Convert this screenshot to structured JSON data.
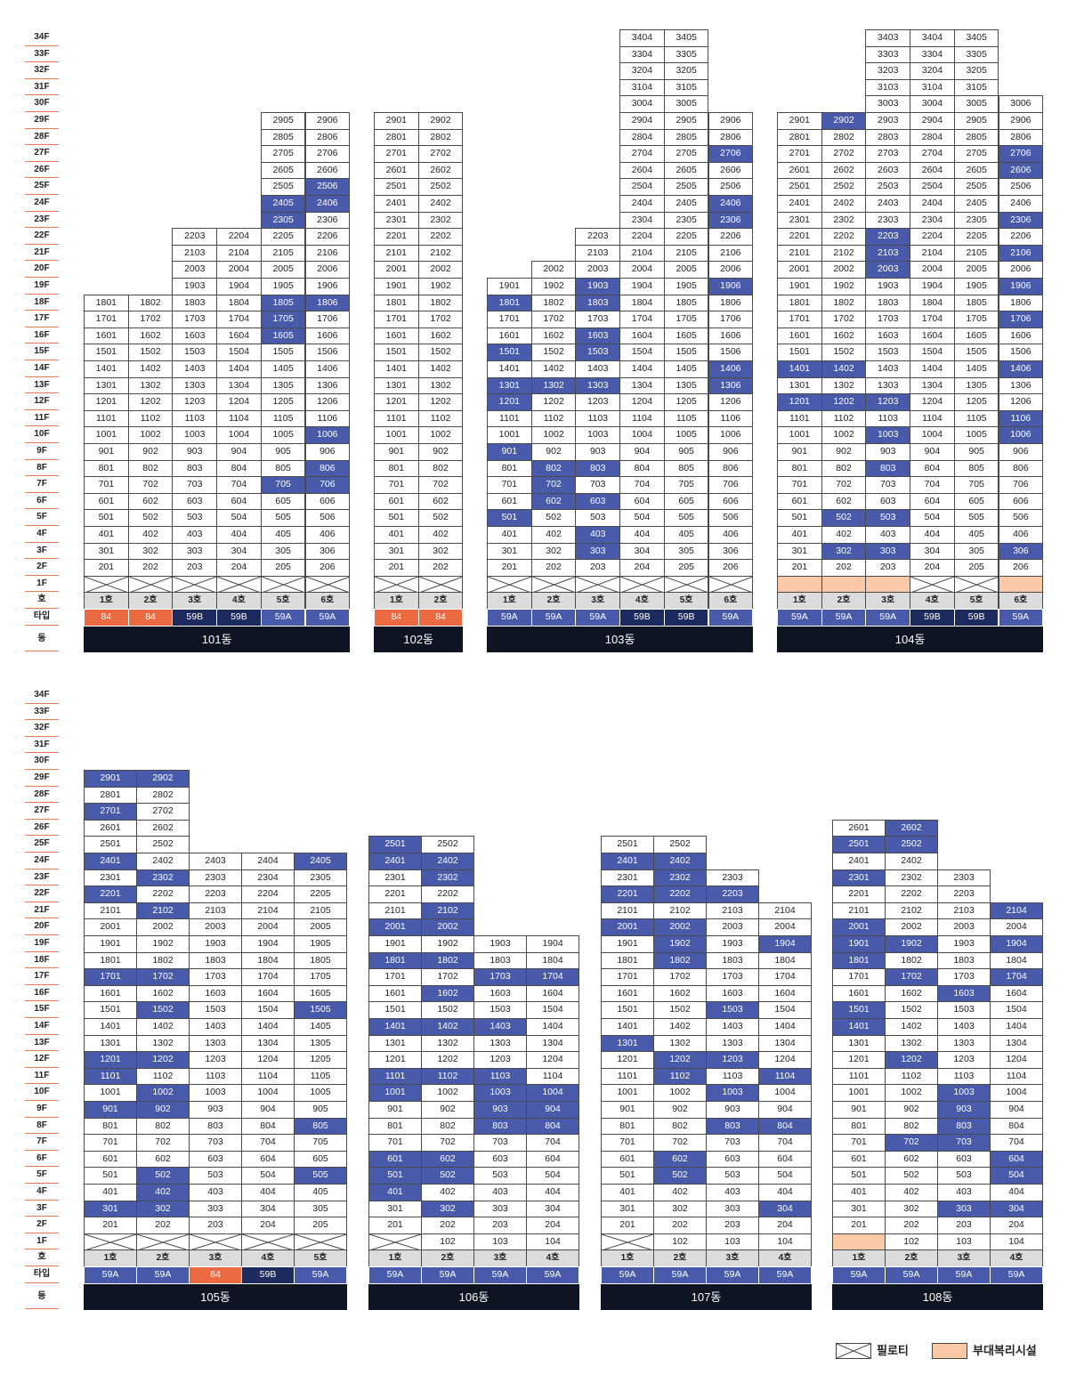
{
  "colors": {
    "highlight": "#4a5aab",
    "type_59A": "#4a5aab",
    "type_59B": "#1c2a5e",
    "type_84": "#ec6a42",
    "facility": "#f9c9a5",
    "ho_row": "#dcdcdc",
    "dong_bar": "#0e1422",
    "label_line": "#f07a50"
  },
  "row_labels": {
    "ho": "호",
    "type": "타입",
    "dong": "동"
  },
  "floor_labels": [
    "34F",
    "33F",
    "32F",
    "31F",
    "30F",
    "29F",
    "28F",
    "27F",
    "26F",
    "25F",
    "24F",
    "23F",
    "22F",
    "21F",
    "20F",
    "19F",
    "18F",
    "17F",
    "16F",
    "15F",
    "14F",
    "13F",
    "12F",
    "11F",
    "10F",
    "9F",
    "8F",
    "7F",
    "6F",
    "5F",
    "4F",
    "3F",
    "2F",
    "1F"
  ],
  "legend": {
    "piloti": "필로티",
    "facility": "부대복리시설"
  },
  "buildings": [
    {
      "name": "101동",
      "section": 0,
      "hos": [
        "1호",
        "2호",
        "3호",
        "4호",
        "5호",
        "6호"
      ],
      "types": [
        "84",
        "84",
        "59B",
        "59B",
        "59A",
        "59A"
      ],
      "top": [
        18,
        18,
        22,
        22,
        29,
        29
      ],
      "first": [
        "P",
        "P",
        "P",
        "P",
        "P",
        "P"
      ],
      "hl": [
        "705",
        "706",
        "806",
        "1006",
        "1605",
        "1705",
        "1805",
        "1806",
        "2305",
        "2405",
        "2406",
        "2506"
      ]
    },
    {
      "name": "102동",
      "section": 0,
      "hos": [
        "1호",
        "2호"
      ],
      "types": [
        "84",
        "84"
      ],
      "top": [
        29,
        29
      ],
      "first": [
        "P",
        "P"
      ],
      "hl": []
    },
    {
      "name": "103동",
      "section": 0,
      "hos": [
        "1호",
        "2호",
        "3호",
        "4호",
        "5호",
        "6호"
      ],
      "types": [
        "59A",
        "59A",
        "59A",
        "59B",
        "59B",
        "59A"
      ],
      "top": [
        19,
        20,
        22,
        34,
        34,
        29
      ],
      "first": [
        "P",
        "P",
        "P",
        "P",
        "P",
        "P"
      ],
      "hl": [
        "501",
        "602",
        "603",
        "702",
        "802",
        "803",
        "901",
        "1201",
        "1301",
        "1302",
        "1303",
        "1406",
        "1306",
        "1501",
        "1503",
        "1603",
        "1801",
        "1803",
        "1903",
        "1906",
        "2306",
        "2406",
        "2706",
        "403",
        "303"
      ]
    },
    {
      "name": "104동",
      "section": 0,
      "hos": [
        "1호",
        "2호",
        "3호",
        "4호",
        "5호",
        "6호"
      ],
      "types": [
        "59A",
        "59A",
        "59A",
        "59B",
        "59B",
        "59A"
      ],
      "top": [
        29,
        29,
        34,
        34,
        34,
        30
      ],
      "first": [
        "F",
        "F",
        "F",
        "P",
        "P",
        "F"
      ],
      "hl": [
        "302",
        "303",
        "306",
        "502",
        "503",
        "803",
        "1003",
        "1006",
        "1106",
        "1201",
        "1202",
        "1203",
        "1401",
        "1402",
        "1406",
        "1706",
        "1906",
        "2003",
        "2103",
        "2106",
        "2203",
        "2306",
        "2606",
        "2706",
        "2902"
      ]
    },
    {
      "name": "105동",
      "section": 1,
      "hos": [
        "1호",
        "2호",
        "3호",
        "4호",
        "5호"
      ],
      "types": [
        "59A",
        "59A",
        "84",
        "59B",
        "59A"
      ],
      "top": [
        29,
        29,
        24,
        24,
        24
      ],
      "first": [
        "P",
        "P",
        "P",
        "P",
        "P"
      ],
      "hl": [
        "301",
        "302",
        "402",
        "502",
        "505",
        "805",
        "901",
        "902",
        "1002",
        "1101",
        "1201",
        "1202",
        "1502",
        "1505",
        "1701",
        "1702",
        "2102",
        "2201",
        "2302",
        "2401",
        "2405",
        "2701",
        "2901",
        "2902"
      ]
    },
    {
      "name": "106동",
      "section": 1,
      "hos": [
        "1호",
        "2호",
        "3호",
        "4호"
      ],
      "types": [
        "59A",
        "59A",
        "59A",
        "59A"
      ],
      "top": [
        25,
        25,
        19,
        19
      ],
      "first": [
        "P",
        "N",
        "N",
        "N"
      ],
      "hl": [
        "302",
        "401",
        "501",
        "502",
        "601",
        "602",
        "803",
        "804",
        "903",
        "904",
        "1001",
        "1003",
        "1004",
        "1101",
        "1102",
        "1103",
        "1401",
        "1402",
        "1403",
        "1602",
        "1703",
        "1704",
        "1801",
        "1802",
        "2001",
        "2002",
        "2102",
        "2302",
        "2401",
        "2402",
        "2501"
      ]
    },
    {
      "name": "107동",
      "section": 1,
      "hos": [
        "1호",
        "2호",
        "3호",
        "4호"
      ],
      "types": [
        "59A",
        "59A",
        "59A",
        "59A"
      ],
      "top": [
        25,
        25,
        23,
        21
      ],
      "first": [
        "P",
        "N",
        "N",
        "N"
      ],
      "hl": [
        "304",
        "502",
        "602",
        "803",
        "804",
        "1003",
        "1102",
        "1104",
        "1202",
        "1203",
        "1301",
        "1503",
        "1802",
        "1902",
        "1904",
        "2001",
        "2002",
        "2201",
        "2202",
        "2203",
        "2302",
        "2401",
        "2402"
      ]
    },
    {
      "name": "108동",
      "section": 1,
      "hos": [
        "1호",
        "2호",
        "3호",
        "4호"
      ],
      "types": [
        "59A",
        "59A",
        "59A",
        "59A"
      ],
      "top": [
        26,
        26,
        23,
        21
      ],
      "first": [
        "F",
        "N",
        "N",
        "N"
      ],
      "hl": [
        "303",
        "304",
        "504",
        "604",
        "702",
        "703",
        "803",
        "903",
        "1003",
        "1202",
        "1401",
        "1501",
        "1603",
        "1702",
        "1704",
        "1801",
        "1901",
        "1902",
        "1904",
        "2001",
        "2104",
        "2301",
        "2501",
        "2502",
        "2602"
      ]
    }
  ]
}
